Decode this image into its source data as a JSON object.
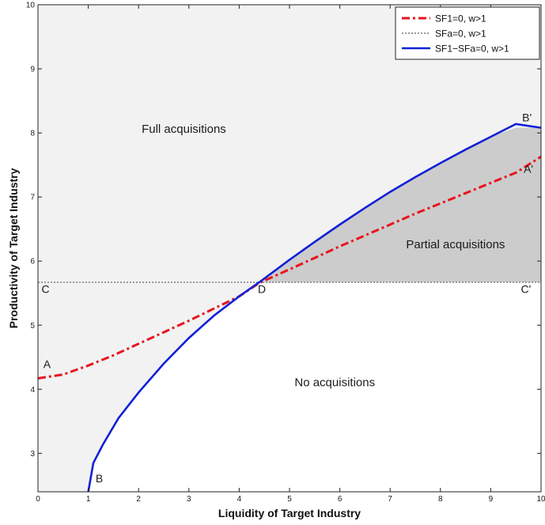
{
  "chart_data": {
    "type": "line",
    "xlabel": "Liquidity of Target Industry",
    "ylabel": "Productivity of Target Industry",
    "xlim": [
      0,
      10
    ],
    "ylim": [
      2.4,
      10
    ],
    "xticks": [
      "0",
      "1",
      "2",
      "3",
      "4",
      "5",
      "6",
      "7",
      "8",
      "9",
      "10"
    ],
    "yticks": [
      "3",
      "4",
      "5",
      "6",
      "7",
      "8",
      "9",
      "10"
    ],
    "grid": false,
    "legend_position": "top-right",
    "series": [
      {
        "name": "SF1=0, w>1",
        "style": "dash-dot",
        "color": "#e8141c",
        "x": [
          0,
          0.5,
          1,
          1.5,
          2,
          2.5,
          3,
          3.5,
          4,
          4.4,
          5,
          5.5,
          6,
          6.5,
          7,
          7.5,
          8,
          8.5,
          9,
          9.5,
          10
        ],
        "y": [
          4.17,
          4.23,
          4.37,
          4.53,
          4.71,
          4.89,
          5.07,
          5.26,
          5.45,
          5.66,
          5.87,
          6.05,
          6.23,
          6.4,
          6.57,
          6.74,
          6.9,
          7.06,
          7.22,
          7.38,
          7.63
        ]
      },
      {
        "name": "SFa=0, w>1",
        "style": "dotted",
        "color": "#9a9a9a",
        "x": [
          0,
          10
        ],
        "y": [
          5.67,
          5.67
        ]
      },
      {
        "name": "SF1−SFa=0, w>1",
        "style": "solid",
        "color": "#1020d8",
        "x": [
          1,
          1.1,
          1.3,
          1.6,
          2,
          2.5,
          3,
          3.5,
          4,
          4.4,
          5,
          5.5,
          6,
          6.5,
          7,
          7.5,
          8,
          8.5,
          9,
          9.5,
          10
        ],
        "y": [
          2.4,
          2.85,
          3.15,
          3.55,
          3.95,
          4.4,
          4.8,
          5.15,
          5.45,
          5.67,
          6.02,
          6.3,
          6.57,
          6.83,
          7.08,
          7.31,
          7.53,
          7.74,
          7.94,
          8.14,
          8.08
        ]
      }
    ],
    "region_labels": [
      {
        "text": "Full acquisitions",
        "x": 2.9,
        "y": 8.0
      },
      {
        "text": "Partial acquisitions",
        "x": 8.3,
        "y": 6.2
      },
      {
        "text": "No acquisitions",
        "x": 5.9,
        "y": 4.05
      }
    ],
    "point_labels": [
      {
        "text": "A",
        "x": 0.18,
        "y": 4.33
      },
      {
        "text": "B",
        "x": 1.22,
        "y": 2.55
      },
      {
        "text": "C",
        "x": 0.15,
        "y": 5.5
      },
      {
        "text": "D",
        "x": 4.45,
        "y": 5.5
      },
      {
        "text": "C'",
        "x": 9.7,
        "y": 5.5
      },
      {
        "text": "B'",
        "x": 9.72,
        "y": 8.18
      },
      {
        "text": "A'",
        "x": 9.75,
        "y": 7.38
      }
    ],
    "colors": {
      "full_region": "#f2f2f2",
      "partial_region": "#cccccc",
      "no_region": "#ffffff"
    }
  }
}
